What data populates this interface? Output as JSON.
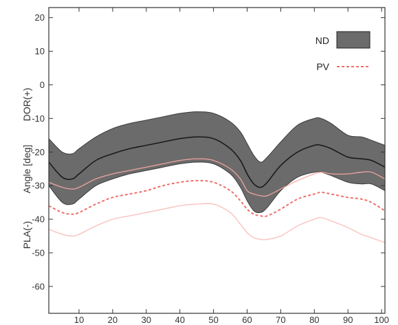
{
  "chart_data": {
    "type": "area",
    "title": "",
    "xlabel": "",
    "ylabel": "Angle [deg]",
    "ylabel_top": "DOR(+)",
    "ylabel_bottom": "PLA(-)",
    "xlim": [
      1,
      101
    ],
    "ylim": [
      -68,
      23
    ],
    "xticks": [
      10,
      20,
      30,
      40,
      50,
      60,
      70,
      80,
      90,
      100
    ],
    "yticks": [
      20,
      10,
      0,
      -10,
      -20,
      -30,
      -40,
      -50,
      -60
    ],
    "grid": false,
    "legend": {
      "position": "top-right"
    },
    "x": [
      1,
      5,
      8,
      10,
      15,
      20,
      25,
      30,
      35,
      40,
      45,
      50,
      55,
      58,
      60,
      62,
      64,
      66,
      70,
      75,
      80,
      82,
      85,
      90,
      94,
      97,
      101
    ],
    "series": [
      {
        "name": "ND",
        "style": "band",
        "color": "#6b6b6b",
        "upper": [
          -16,
          -20,
          -20.5,
          -19,
          -15.5,
          -13,
          -11.5,
          -10.5,
          -9.5,
          -8.5,
          -8,
          -8.5,
          -11,
          -14,
          -17.5,
          -21,
          -23,
          -21.5,
          -17,
          -12,
          -10,
          -10,
          -11.5,
          -15,
          -15.5,
          -16.5,
          -18
        ],
        "mean": [
          -23,
          -27.5,
          -28,
          -26.5,
          -22.5,
          -20.5,
          -19,
          -18,
          -17,
          -16,
          -15.5,
          -16,
          -19,
          -22.5,
          -26.5,
          -29.5,
          -30.5,
          -29,
          -24,
          -20,
          -18,
          -18,
          -19,
          -21.5,
          -22,
          -22.5,
          -24.5
        ],
        "lower": [
          -30,
          -35,
          -35.5,
          -34,
          -30,
          -28,
          -26.5,
          -25.5,
          -24.5,
          -23.5,
          -23,
          -23.5,
          -26.5,
          -30.5,
          -34.5,
          -37.5,
          -38,
          -36.5,
          -31.5,
          -27.5,
          -26,
          -26,
          -27,
          -29,
          -29.5,
          -29.5,
          -31.5
        ]
      },
      {
        "name": "PV",
        "style": "band",
        "color": "#f4a6a4",
        "upper": [
          -29,
          -30.5,
          -31,
          -30.5,
          -28,
          -26.5,
          -25.5,
          -24.5,
          -23.5,
          -22.5,
          -22,
          -22.5,
          -25,
          -28,
          -31.5,
          -32.5,
          -33,
          -33,
          -31,
          -28.5,
          -26.5,
          -26,
          -26.5,
          -26.5,
          -26,
          -26,
          -28
        ],
        "mean": [
          -36,
          -38,
          -38.5,
          -38,
          -35.5,
          -33.5,
          -32.5,
          -31.5,
          -30,
          -29,
          -28.5,
          -29,
          -31.5,
          -34.5,
          -37,
          -38.5,
          -39,
          -39,
          -37,
          -34,
          -32.5,
          -32,
          -32.5,
          -33.5,
          -34,
          -35,
          -37.5
        ],
        "lower": [
          -43,
          -44.5,
          -45,
          -44.5,
          -42,
          -40,
          -39,
          -38,
          -37,
          -36,
          -35.5,
          -35.5,
          -38,
          -41.5,
          -44,
          -45.5,
          -46,
          -46,
          -45,
          -42,
          -40,
          -39.5,
          -40.5,
          -42.5,
          -44.5,
          -45.5,
          -47
        ]
      }
    ]
  }
}
